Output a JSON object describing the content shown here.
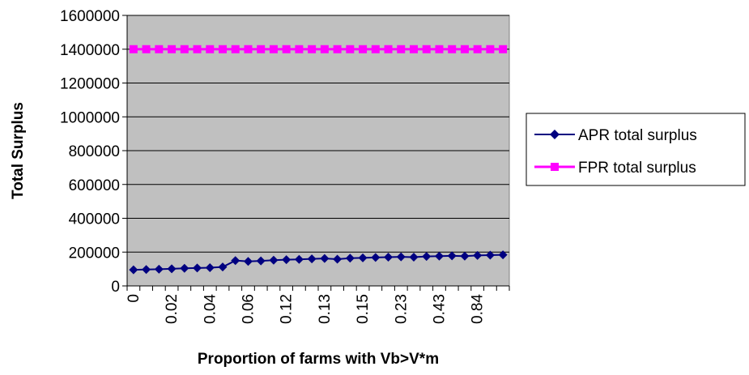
{
  "chart_data": {
    "type": "line",
    "xlabel": "Proportion of farms with Vb>V*m",
    "ylabel": "Total Surplus",
    "ylim": [
      0,
      1600000
    ],
    "y_ticks": [
      "0",
      "200000",
      "400000",
      "600000",
      "800000",
      "1000000",
      "1200000",
      "1400000",
      "1600000"
    ],
    "x": [
      "0",
      "0",
      "0",
      "0.02",
      "0.02",
      "0.02",
      "0.04",
      "0.04",
      "0.04",
      "0.06",
      "0.06",
      "0.06",
      "0.12",
      "0.12",
      "0.12",
      "0.13",
      "0.13",
      "0.13",
      "0.15",
      "0.15",
      "0.15",
      "0.23",
      "0.23",
      "0.23",
      "0.43",
      "0.43",
      "0.43",
      "0.84",
      "0.84",
      "0.84"
    ],
    "x_tick_labels": [
      "0",
      "0.02",
      "0.04",
      "0.06",
      "0.12",
      "0.13",
      "0.15",
      "0.23",
      "0.43",
      "0.84"
    ],
    "grid": "horizontal",
    "plot_background": "#c0c0c0",
    "legend_position": "right",
    "series": [
      {
        "name": "APR total surplus",
        "color": "#000080",
        "marker": "diamond",
        "values": [
          95000,
          97000,
          99000,
          101000,
          104000,
          106000,
          108000,
          112000,
          150000,
          145000,
          148000,
          152000,
          155000,
          157000,
          160000,
          162000,
          158000,
          164000,
          166000,
          168000,
          170000,
          172000,
          170000,
          174000,
          176000,
          178000,
          176000,
          180000,
          182000,
          184000
        ]
      },
      {
        "name": "FPR total surplus",
        "color": "#ff00ff",
        "marker": "square",
        "values": [
          1400000,
          1400000,
          1400000,
          1400000,
          1400000,
          1400000,
          1400000,
          1400000,
          1400000,
          1400000,
          1400000,
          1400000,
          1400000,
          1400000,
          1400000,
          1400000,
          1400000,
          1400000,
          1400000,
          1400000,
          1400000,
          1400000,
          1400000,
          1400000,
          1400000,
          1400000,
          1400000,
          1400000,
          1400000,
          1400000
        ]
      }
    ]
  }
}
